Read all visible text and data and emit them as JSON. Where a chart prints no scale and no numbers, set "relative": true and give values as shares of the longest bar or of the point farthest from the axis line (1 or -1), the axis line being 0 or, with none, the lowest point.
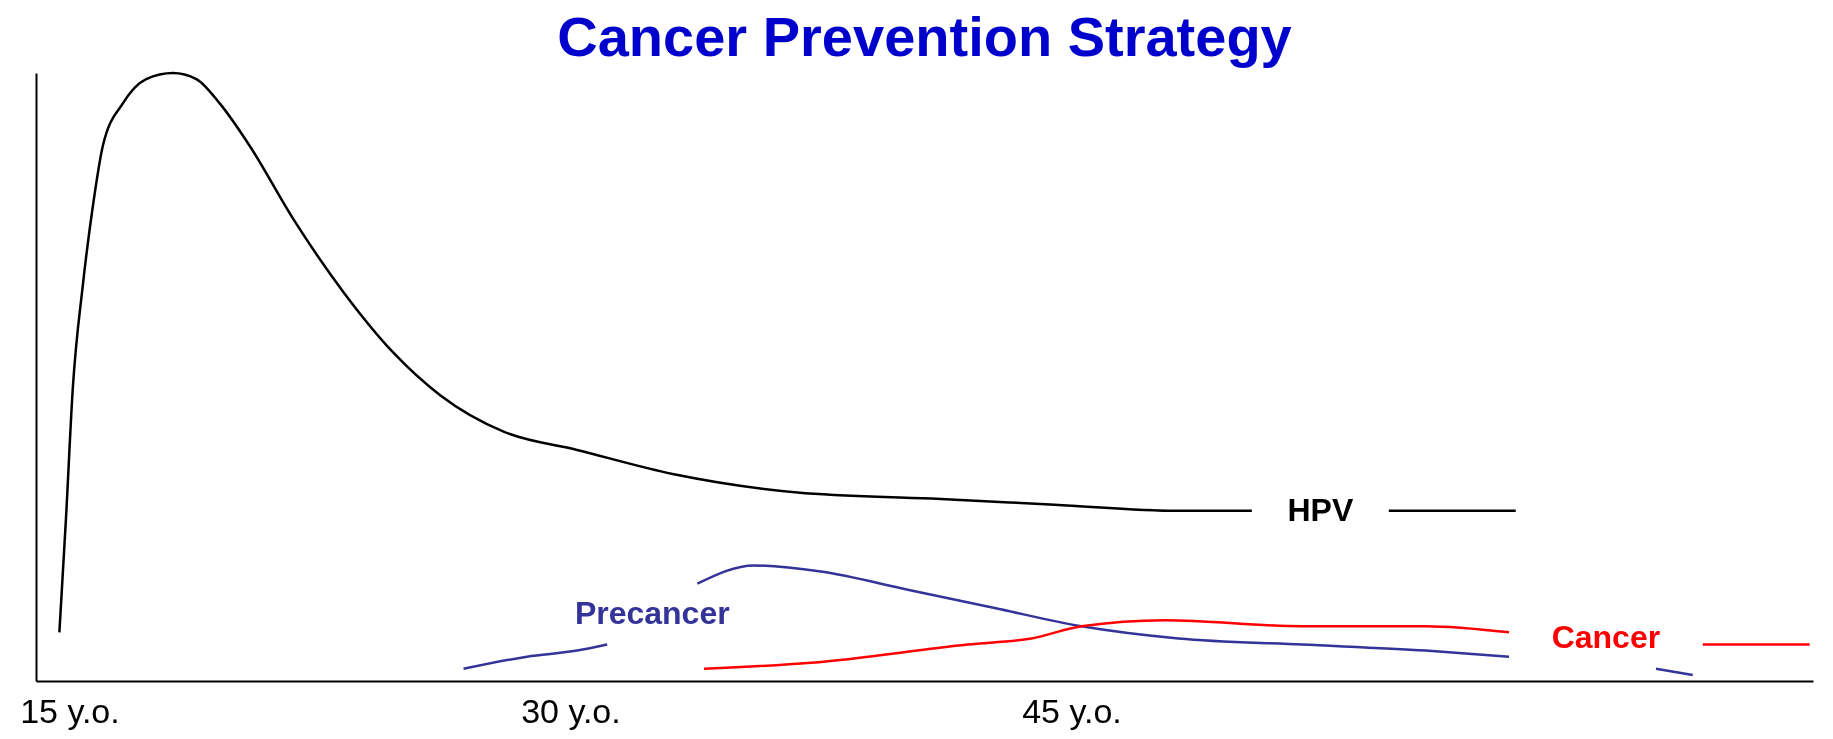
{
  "chart_data": {
    "type": "line",
    "title": "Cancer Prevention Strategy",
    "relative": true,
    "xlim": [
      14.0,
      67.2
    ],
    "xticks": [
      {
        "value": 15,
        "label": "15 y.o."
      },
      {
        "value": 30,
        "label": "30 y.o."
      },
      {
        "value": 45,
        "label": "45 y.o."
      }
    ],
    "grid": false,
    "legend": false,
    "marker": "none",
    "line_style": "solid",
    "series": [
      {
        "name": "HPV",
        "color": "#000000",
        "x": [
          14.7,
          14.9,
          15.1,
          15.4,
          15.7,
          16.0,
          16.6,
          17.3,
          18.1,
          18.8,
          19.5,
          20.4,
          21.7,
          23.2,
          24.7,
          26.1,
          28.0,
          30.2,
          33.1,
          36.8,
          40.8,
          44.5,
          48.2,
          50.4,
          52.5,
          54.5,
          58.3
        ],
        "values": [
          0.08,
          0.27,
          0.48,
          0.65,
          0.78,
          0.88,
          0.95,
          0.99,
          1,
          0.99,
          0.95,
          0.88,
          0.76,
          0.64,
          0.54,
          0.47,
          0.41,
          0.38,
          0.34,
          0.31,
          0.3,
          0.29,
          0.28,
          0.28,
          null,
          0.28,
          0.28
        ]
      },
      {
        "name": "Precancer",
        "color": "#333399",
        "x": [
          26.8,
          28.7,
          30.2,
          31.1,
          32.5,
          33.8,
          35.5,
          37.5,
          40.1,
          42.7,
          45.3,
          48.2,
          51.9,
          55.6,
          58.1,
          61.0,
          62.5,
          63.6
        ],
        "values": [
          0.02,
          0.04,
          0.05,
          0.06,
          null,
          0.16,
          0.19,
          0.18,
          0.15,
          0.12,
          0.09,
          0.07,
          0.06,
          0.05,
          0.04,
          null,
          0.02,
          0.01
        ]
      },
      {
        "name": "Cancer",
        "color": "#ff0000",
        "x": [
          34.0,
          37.2,
          41.9,
          43.8,
          45.3,
          47.8,
          51.9,
          55.6,
          58.1,
          61.0,
          63.9,
          67.1
        ],
        "values": [
          0.02,
          0.03,
          0.06,
          0.07,
          0.09,
          0.1,
          0.09,
          0.09,
          0.08,
          null,
          0.06,
          0.06
        ]
      }
    ]
  }
}
